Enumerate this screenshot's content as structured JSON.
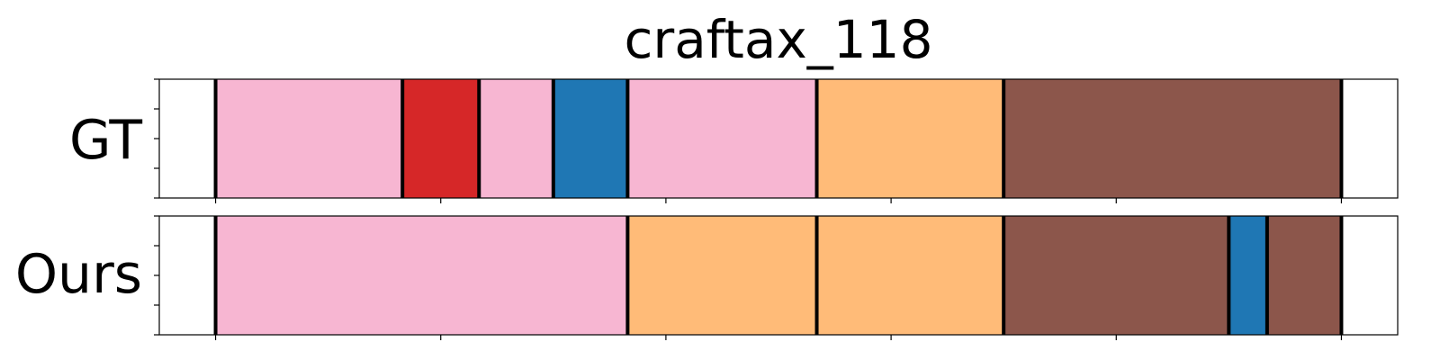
{
  "chart_data": {
    "type": "segment-timeline",
    "title": "craftax_118",
    "x_range": [
      -0.25,
      5.25
    ],
    "x_ticks": [
      0,
      1,
      2,
      3,
      4,
      5
    ],
    "show_tick_labels": false,
    "rows": [
      {
        "label": "GT",
        "segments": [
          {
            "start": 0.0,
            "end": 0.83,
            "color": "#f7b6d2"
          },
          {
            "start": 0.83,
            "end": 1.17,
            "color": "#d62728"
          },
          {
            "start": 1.17,
            "end": 1.5,
            "color": "#f7b6d2"
          },
          {
            "start": 1.5,
            "end": 1.83,
            "color": "#1f77b4"
          },
          {
            "start": 1.83,
            "end": 2.67,
            "color": "#f7b6d2"
          },
          {
            "start": 2.67,
            "end": 3.5,
            "color": "#ffbb78"
          },
          {
            "start": 3.5,
            "end": 5.0,
            "color": "#8c564b"
          }
        ]
      },
      {
        "label": "Ours",
        "segments": [
          {
            "start": 0.0,
            "end": 1.83,
            "color": "#f7b6d2"
          },
          {
            "start": 1.83,
            "end": 2.67,
            "color": "#ffbb78"
          },
          {
            "start": 2.67,
            "end": 3.5,
            "color": "#ffbb78"
          },
          {
            "start": 3.5,
            "end": 4.5,
            "color": "#8c564b"
          },
          {
            "start": 4.5,
            "end": 4.67,
            "color": "#1f77b4"
          },
          {
            "start": 4.67,
            "end": 5.0,
            "color": "#8c564b"
          }
        ]
      }
    ]
  }
}
